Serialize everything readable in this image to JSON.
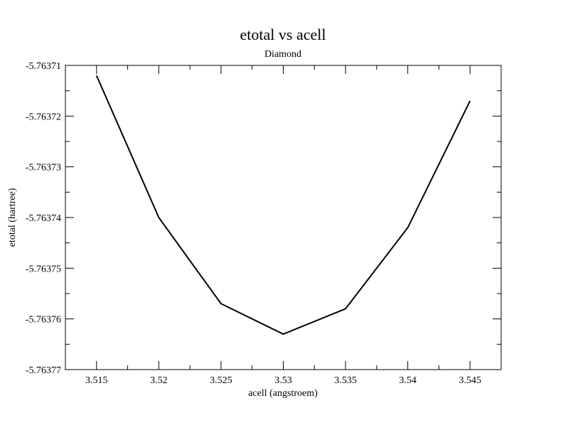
{
  "chart_data": {
    "type": "line",
    "title": "etotal vs acell",
    "subtitle": "Diamond",
    "xlabel": "acell (angstroem)",
    "ylabel": "etotal (hartree)",
    "xlim": [
      3.5125,
      3.5475
    ],
    "ylim": [
      -5.76377,
      -5.76371
    ],
    "x_ticks": [
      3.515,
      3.52,
      3.525,
      3.53,
      3.535,
      3.54,
      3.545
    ],
    "x_tick_labels": [
      "3.515",
      "3.52",
      "3.525",
      "3.53",
      "3.535",
      "3.54",
      "3.545"
    ],
    "y_ticks": [
      -5.76377,
      -5.76376,
      -5.76375,
      -5.76374,
      -5.76373,
      -5.76372,
      -5.76371
    ],
    "y_tick_labels": [
      "-5.76377",
      "-5.76376",
      "-5.76375",
      "-5.76374",
      "-5.76373",
      "-5.76372",
      "-5.76371"
    ],
    "grid": false,
    "series": [
      {
        "x": [
          3.515,
          3.52,
          3.525,
          3.53,
          3.535,
          3.54,
          3.545
        ],
        "values": [
          -5.763712,
          -5.76374,
          -5.763757,
          -5.763763,
          -5.763758,
          -5.763742,
          -5.763717
        ],
        "color": "#000000"
      }
    ]
  }
}
